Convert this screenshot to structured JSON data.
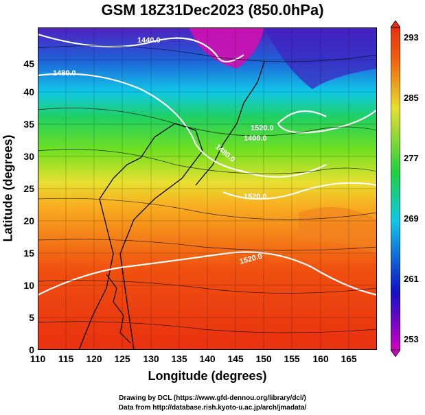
{
  "title": "GSM 18Z31Dec2023 (850.0hPa)",
  "x_axis": {
    "label": "Longitude (degrees)",
    "ticks": [
      "110",
      "115",
      "120",
      "125",
      "130",
      "135",
      "140",
      "145",
      "150",
      "155",
      "160",
      "165"
    ]
  },
  "y_axis": {
    "label": "Latitude (degrees)",
    "ticks": [
      "0",
      "5",
      "10",
      "15",
      "20",
      "25",
      "30",
      "35",
      "40",
      "45"
    ]
  },
  "colorbar": {
    "ticks": [
      "253",
      "261",
      "269",
      "277",
      "285",
      "293"
    ],
    "colors": [
      "#d000c0",
      "#1010c8",
      "#10c8e8",
      "#20d040",
      "#e8e030",
      "#f06010",
      "#e83010"
    ]
  },
  "contours": [
    {
      "label": "1440.0"
    },
    {
      "label": "1480.0"
    },
    {
      "label": "1520.0"
    },
    {
      "label": "1520.0"
    },
    {
      "label": "1480.0"
    },
    {
      "label": "1400.0"
    },
    {
      "label": "1520.0"
    }
  ],
  "credits": {
    "line1": "Drawing by DCL (https://www.gfd-dennou.org/library/dcl/)",
    "line2": "Data from http://database.rish.kyoto-u.ac.jp/arch/jmadata/"
  },
  "chart_data": {
    "type": "heatmap",
    "variable": "temperature (K)",
    "range": [
      253,
      293
    ],
    "xlim": [
      110,
      170
    ],
    "ylim": [
      0,
      50
    ],
    "contour_levels": [
      1400,
      1440,
      1480,
      1520
    ]
  }
}
